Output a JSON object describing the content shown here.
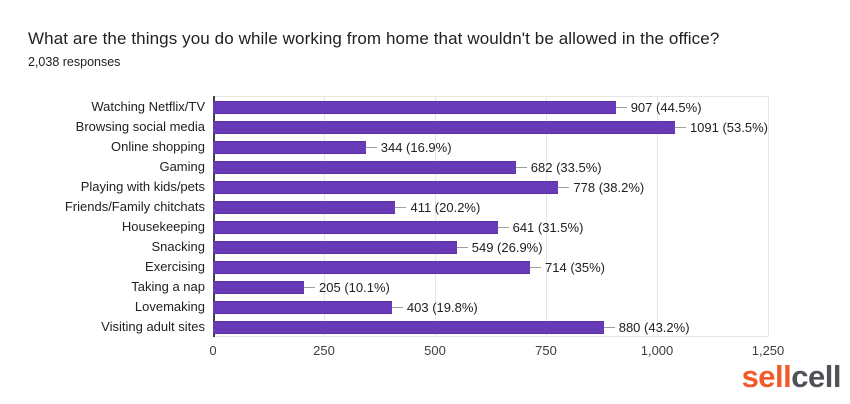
{
  "header": {
    "title": "What are the things you do while working from home that wouldn't be allowed in the office?",
    "subtitle": "2,038 responses"
  },
  "chart_data": {
    "type": "bar",
    "orientation": "horizontal",
    "title": "What are the things you do while working from home that wouldn't be allowed in the office?",
    "subtitle": "2,038 responses",
    "categories": [
      "Watching Netflix/TV",
      "Browsing social media",
      "Online shopping",
      "Gaming",
      "Playing with kids/pets",
      "Friends/Family chitchats",
      "Housekeeping",
      "Snacking",
      "Exercising",
      "Taking a nap",
      "Lovemaking",
      "Visiting adult sites"
    ],
    "values": [
      907,
      1091,
      344,
      682,
      778,
      411,
      641,
      549,
      714,
      205,
      403,
      880
    ],
    "percentages": [
      44.5,
      53.5,
      16.9,
      33.5,
      38.2,
      20.2,
      31.5,
      26.9,
      35,
      10.1,
      19.8,
      43.2
    ],
    "value_labels": [
      "907 (44.5%)",
      "1091 (53.5%)",
      "344 (16.9%)",
      "682 (33.5%)",
      "778 (38.2%)",
      "411 (20.2%)",
      "641 (31.5%)",
      "549 (26.9%)",
      "714 (35%)",
      "205 (10.1%)",
      "403 (19.8%)",
      "880 (43.2%)"
    ],
    "x_ticks": [
      "0",
      "250",
      "500",
      "750",
      "1,000",
      "1,250"
    ],
    "xlim": [
      0,
      1250
    ],
    "grid": true,
    "legend": false,
    "bar_color": "#673ab7",
    "axis_color": "#424242",
    "gridline_color": "#e6e6e6",
    "leader_line_color": "#9e9e9e"
  },
  "branding": {
    "logo_part1": "sell",
    "logo_part2": "cell",
    "logo_color1": "#f15a29",
    "logo_color2": "#515257"
  }
}
